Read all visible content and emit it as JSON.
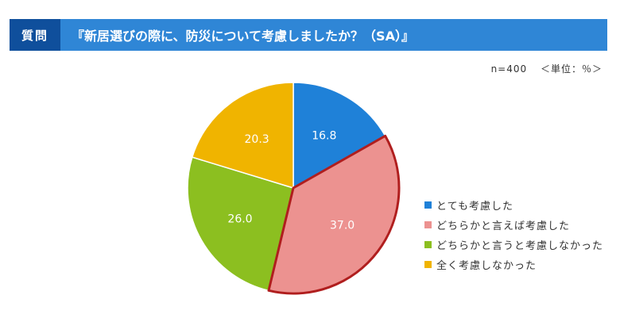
{
  "header": {
    "tag": "質問",
    "title": "『新居選びの際に、防災について考慮しましたか？（SA）』"
  },
  "meta": {
    "sample": "n=400",
    "unit": "＜単位：％＞"
  },
  "chart_data": {
    "type": "pie",
    "categories": [
      "とても考慮した",
      "どちらかと言えば考慮した",
      "どちらかと言うと考慮しなかった",
      "全く考慮しなかった"
    ],
    "values": [
      16.8,
      37.0,
      26.0,
      20.3
    ],
    "value_labels": [
      "16.8",
      "37.0",
      "26.0",
      "20.3"
    ],
    "colors": [
      "#1f81d8",
      "#ec9290",
      "#8cbf20",
      "#f0b400"
    ],
    "highlight": "どちらかと言えば考慮した",
    "highlight_color": "#b01e1e",
    "legend_position": "right"
  }
}
